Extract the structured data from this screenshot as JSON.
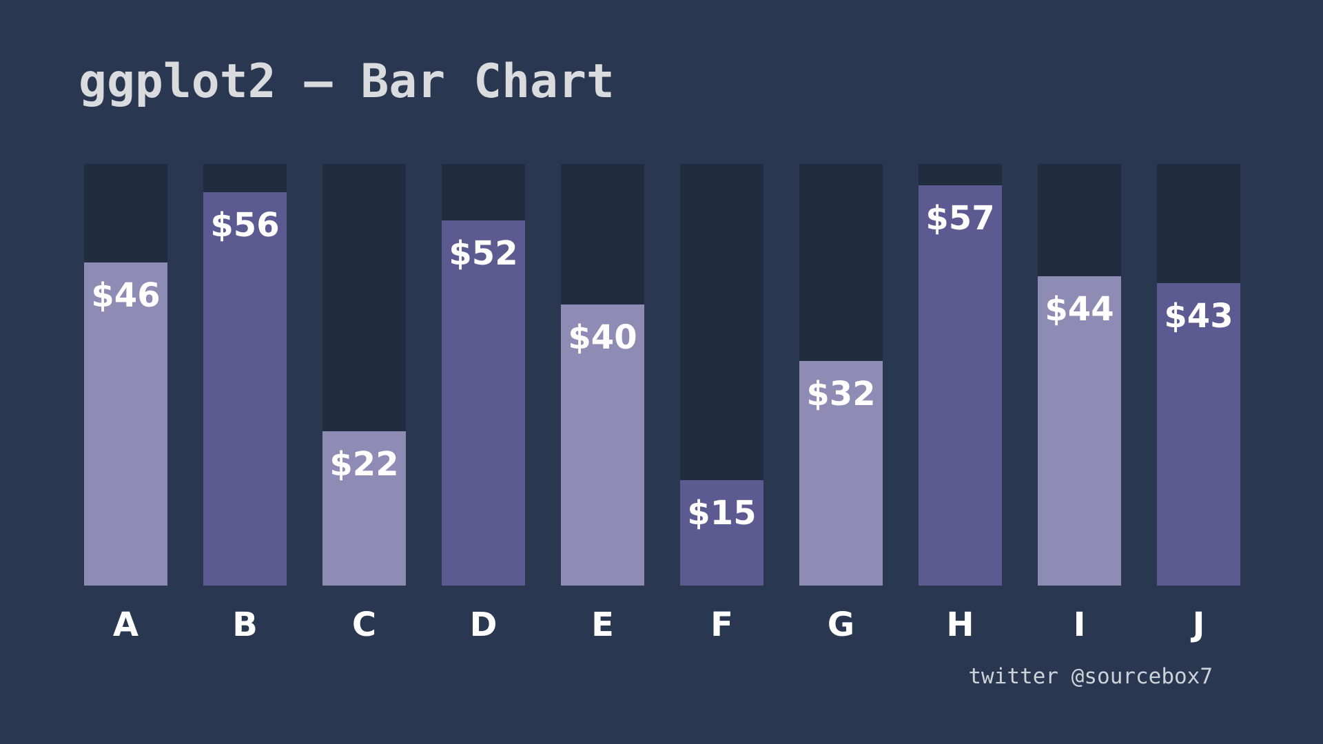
{
  "page": {
    "background": "#293750",
    "title": "ggplot2 — Bar Chart",
    "title_color": "#D9DBDE",
    "credit": "twitter @sourcebox7",
    "credit_color": "#CDD3D9"
  },
  "chart_data": {
    "type": "bar",
    "title": "ggplot2 — Bar Chart",
    "categories": [
      "A",
      "B",
      "C",
      "D",
      "E",
      "F",
      "G",
      "H",
      "I",
      "J"
    ],
    "values": [
      46,
      56,
      22,
      52,
      40,
      15,
      32,
      57,
      44,
      43
    ],
    "value_labels": [
      "$46",
      "$56",
      "$22",
      "$52",
      "$40",
      "$15",
      "$32",
      "$57",
      "$44",
      "$43"
    ],
    "ylim": [
      0,
      60
    ],
    "xlabel": "",
    "ylabel": "",
    "grid": false,
    "legend": "none",
    "bar_colors": [
      "#8E8BB4",
      "#5C5A91",
      "#8E8BB4",
      "#5C5A91",
      "#8E8BB4",
      "#5C5A91",
      "#8E8BB4",
      "#5C5A91",
      "#8E8BB4",
      "#5C5A91"
    ],
    "palette": {
      "light_purple": "#8E8BB4",
      "dark_purple": "#5C5A91"
    },
    "track_color": "#202D3E",
    "value_label_color": "#FFFFFF",
    "category_label_color": "#FFFFFF"
  }
}
